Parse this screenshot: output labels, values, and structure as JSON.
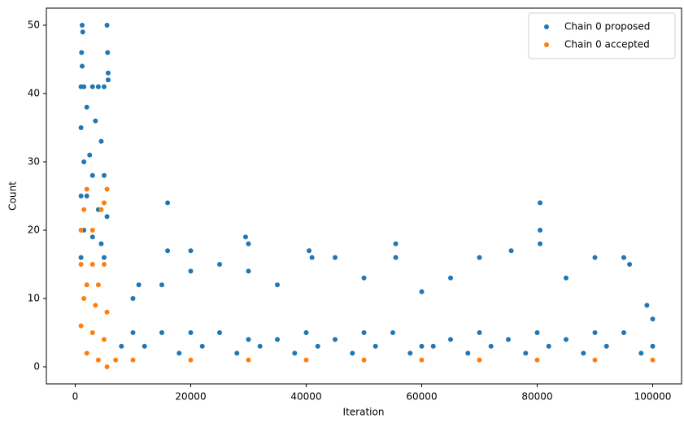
{
  "chart_data": {
    "type": "scatter",
    "x_label": "Iteration",
    "y_label": "Count",
    "xlim": [
      -5000,
      105000
    ],
    "ylim": [
      -2.5,
      52.5
    ],
    "xticks": [
      0,
      20000,
      40000,
      60000,
      80000,
      100000
    ],
    "yticks": [
      0,
      10,
      20,
      30,
      40,
      50
    ],
    "legend": "upper right",
    "series": [
      {
        "name": "Chain 0 proposed",
        "color": "#1f77b4",
        "x": [
          1200,
          1300,
          1100,
          1200,
          5500,
          5600,
          5700,
          5700,
          1000,
          1500,
          3000,
          4000,
          5000,
          2000,
          3500,
          1000,
          4500,
          2500,
          1500,
          3000,
          5000,
          1000,
          2000,
          4000,
          5500,
          1500,
          3000,
          4500,
          1000,
          5000,
          8000,
          10000,
          11000,
          15000,
          16000,
          16000,
          20000,
          20000,
          25000,
          29500,
          30000,
          30000,
          35000,
          40500,
          41000,
          45000,
          50000,
          55500,
          55500,
          60000,
          65000,
          70000,
          75500,
          80500,
          80500,
          80500,
          85000,
          90000,
          95000,
          96000,
          99000,
          100000,
          10000,
          15000,
          20000,
          25000,
          30000,
          35000,
          40000,
          45000,
          50000,
          55000,
          60000,
          65000,
          70000,
          75000,
          80000,
          85000,
          90000,
          95000,
          100000,
          12000,
          22000,
          32000,
          42000,
          52000,
          62000,
          72000,
          82000,
          92000,
          18000,
          28000,
          38000,
          48000,
          58000,
          68000,
          78000,
          88000,
          98000
        ],
        "y": [
          50,
          49,
          46,
          44,
          50,
          46,
          43,
          42,
          41,
          41,
          41,
          41,
          41,
          38,
          36,
          35,
          33,
          31,
          30,
          28,
          28,
          25,
          25,
          23,
          22,
          20,
          19,
          18,
          16,
          16,
          3,
          10,
          12,
          12,
          24,
          17,
          17,
          14,
          15,
          19,
          18,
          14,
          12,
          17,
          16,
          16,
          13,
          18,
          16,
          11,
          13,
          16,
          17,
          24,
          20,
          18,
          13,
          16,
          16,
          15,
          9,
          7,
          5,
          5,
          5,
          5,
          4,
          4,
          5,
          4,
          5,
          5,
          3,
          4,
          5,
          4,
          5,
          4,
          5,
          5,
          3,
          3,
          3,
          3,
          3,
          3,
          3,
          3,
          3,
          3,
          2,
          2,
          2,
          2,
          2,
          2,
          2,
          2,
          2
        ]
      },
      {
        "name": "Chain 0 accepted",
        "color": "#ff7f0e",
        "x": [
          2000,
          1500,
          4500,
          1000,
          3000,
          5000,
          5500,
          1000,
          3000,
          5000,
          2000,
          4000,
          1500,
          3500,
          5500,
          1000,
          3000,
          5000,
          2000,
          4000,
          5500,
          7000,
          10000,
          20000,
          30000,
          40000,
          50000,
          60000,
          70000,
          80000,
          90000,
          100000
        ],
        "y": [
          26,
          23,
          23,
          20,
          20,
          24,
          26,
          15,
          15,
          15,
          12,
          12,
          10,
          9,
          8,
          6,
          5,
          4,
          2,
          1,
          0,
          1,
          1,
          1,
          1,
          1,
          1,
          1,
          1,
          1,
          1,
          1
        ]
      }
    ]
  }
}
